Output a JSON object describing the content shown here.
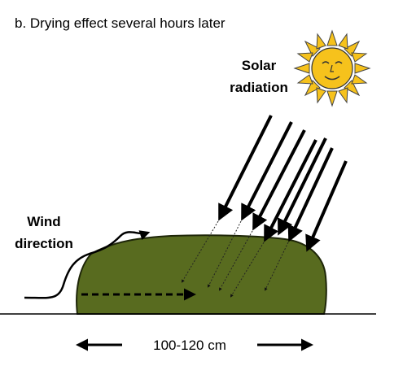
{
  "title": "b. Drying effect several hours later",
  "solar_label": [
    "Solar",
    "radiation"
  ],
  "wind_label": [
    "Wind",
    "direction"
  ],
  "dimension_label": "100-120 cm"
}
